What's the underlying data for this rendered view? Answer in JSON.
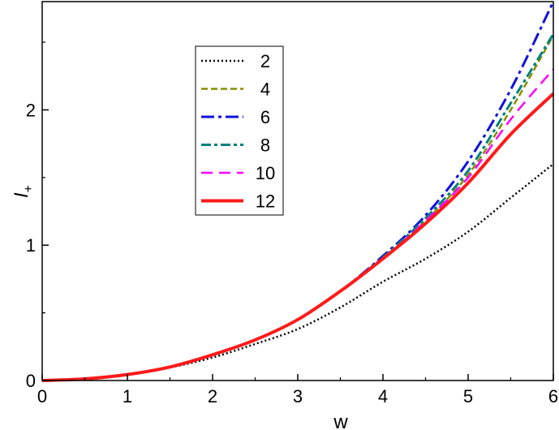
{
  "chart_data": {
    "type": "line",
    "xlabel": "w",
    "ylabel_main": "I",
    "ylabel_sub": "+",
    "xlim": [
      0,
      6
    ],
    "ylim": [
      0,
      2.8
    ],
    "x_ticks": [
      0,
      1,
      2,
      3,
      4,
      5,
      6
    ],
    "y_ticks": [
      0,
      1,
      2
    ],
    "grid": false,
    "legend_position": "upper-left-center",
    "series": [
      {
        "name": "2",
        "color": "#000000",
        "dash": "dot",
        "x": [
          0,
          0.5,
          1,
          1.5,
          2,
          2.5,
          3,
          3.5,
          4,
          4.5,
          5,
          5.5,
          6
        ],
        "y": [
          0,
          0.012,
          0.044,
          0.096,
          0.17,
          0.27,
          0.38,
          0.54,
          0.73,
          0.9,
          1.1,
          1.35,
          1.6
        ]
      },
      {
        "name": "4",
        "color": "#8b8b00",
        "dash": "dash",
        "x": [
          0,
          0.5,
          1,
          1.5,
          2,
          2.5,
          3,
          3.5,
          4,
          4.5,
          5,
          5.5,
          6
        ],
        "y": [
          0,
          0.012,
          0.044,
          0.1,
          0.19,
          0.3,
          0.45,
          0.66,
          0.9,
          1.18,
          1.52,
          2.0,
          2.55
        ]
      },
      {
        "name": "6",
        "color": "#1010e0",
        "dash": "dashdot",
        "x": [
          0,
          0.5,
          1,
          1.5,
          2,
          2.5,
          3,
          3.5,
          4,
          4.5,
          5,
          5.5,
          6
        ],
        "y": [
          0,
          0.012,
          0.044,
          0.1,
          0.19,
          0.3,
          0.45,
          0.66,
          0.92,
          1.22,
          1.62,
          2.15,
          2.8
        ]
      },
      {
        "name": "8",
        "color": "#008080",
        "dash": "dashdot2",
        "x": [
          0,
          0.5,
          1,
          1.5,
          2,
          2.5,
          3,
          3.5,
          4,
          4.5,
          5,
          5.5,
          6
        ],
        "y": [
          0,
          0.012,
          0.044,
          0.1,
          0.19,
          0.3,
          0.45,
          0.66,
          0.91,
          1.2,
          1.55,
          2.05,
          2.56
        ]
      },
      {
        "name": "10",
        "color": "#ff00ff",
        "dash": "longdash",
        "x": [
          0,
          0.5,
          1,
          1.5,
          2,
          2.5,
          3,
          3.5,
          4,
          4.5,
          5,
          5.5,
          6
        ],
        "y": [
          0,
          0.012,
          0.044,
          0.1,
          0.19,
          0.3,
          0.45,
          0.66,
          0.9,
          1.18,
          1.5,
          1.93,
          2.3
        ]
      },
      {
        "name": "12",
        "color": "#ff1a1a",
        "dash": "solid",
        "x": [
          0,
          0.5,
          1,
          1.5,
          2,
          2.5,
          3,
          3.5,
          4,
          4.5,
          5,
          5.5,
          6
        ],
        "y": [
          0,
          0.012,
          0.044,
          0.1,
          0.19,
          0.3,
          0.45,
          0.66,
          0.9,
          1.16,
          1.46,
          1.82,
          2.12
        ]
      }
    ]
  }
}
